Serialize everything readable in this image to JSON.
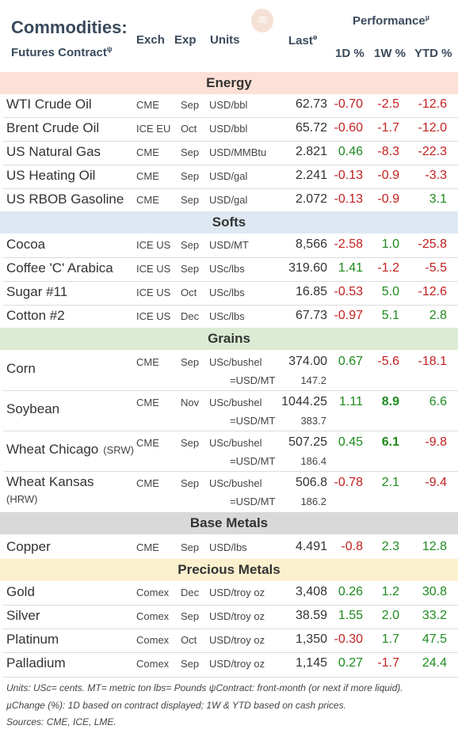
{
  "header": {
    "title": "Commodities:",
    "subtitle": "Futures Contract",
    "subtitle_sup": "ψ",
    "col_exch": "Exch",
    "col_exp": "Exp",
    "col_units": "Units",
    "col_last": "Last",
    "col_last_sup": "ɵ",
    "performance": "Performance",
    "performance_sup": "µ",
    "col_1d": "1D %",
    "col_1w": "1W %",
    "col_ytd": "YTD %"
  },
  "colors": {
    "energy": "#fde0d6",
    "softs": "#dde8f3",
    "grains": "#dcecd4",
    "base": "#d9d9d9",
    "precious": "#fcf1cf",
    "positive": "#1e8a1e",
    "negative": "#c42020"
  },
  "sections": [
    {
      "label": "Energy",
      "rows": [
        {
          "name": "WTI Crude Oil",
          "exch": "CME",
          "exp": "Sep",
          "units": "USD/bbl",
          "last": "62.73",
          "d1": "-0.70",
          "w1": "-2.5",
          "ytd": "-12.6"
        },
        {
          "name": "Brent Crude Oil",
          "exch": "ICE EU",
          "exp": "Oct",
          "units": "USD/bbl",
          "last": "65.72",
          "d1": "-0.60",
          "w1": "-1.7",
          "ytd": "-12.0"
        },
        {
          "name": "US Natural Gas",
          "exch": "CME",
          "exp": "Sep",
          "units": "USD/MMBtu",
          "last": "2.821",
          "d1": "0.46",
          "w1": "-8.3",
          "ytd": "-22.3"
        },
        {
          "name": "US Heating Oil",
          "exch": "CME",
          "exp": "Sep",
          "units": "USD/gal",
          "last": "2.241",
          "d1": "-0.13",
          "w1": "-0.9",
          "ytd": "-3.3"
        },
        {
          "name": "US RBOB Gasoline",
          "exch": "CME",
          "exp": "Sep",
          "units": "USD/gal",
          "last": "2.072",
          "d1": "-0.13",
          "w1": "-0.9",
          "ytd": "3.1"
        }
      ]
    },
    {
      "label": "Softs",
      "rows": [
        {
          "name": "Cocoa",
          "exch": "ICE US",
          "exp": "Sep",
          "units": "USD/MT",
          "last": "8,566",
          "d1": "-2.58",
          "w1": "1.0",
          "ytd": "-25.8"
        },
        {
          "name": "Coffee 'C' Arabica",
          "exch": "ICE US",
          "exp": "Sep",
          "units": "USc/lbs",
          "last": "319.60",
          "d1": "1.41",
          "w1": "-1.2",
          "ytd": "-5.5"
        },
        {
          "name": "Sugar #11",
          "exch": "ICE US",
          "exp": "Oct",
          "units": "USc/lbs",
          "last": "16.85",
          "d1": "-0.53",
          "w1": "5.0",
          "ytd": "-12.6"
        },
        {
          "name": "Cotton #2",
          "exch": "ICE US",
          "exp": "Dec",
          "units": "USc/lbs",
          "last": "67.73",
          "d1": "-0.97",
          "w1": "5.1",
          "ytd": "2.8"
        }
      ]
    },
    {
      "label": "Grains",
      "rows": [
        {
          "name": "Corn",
          "exch": "CME",
          "exp": "Sep",
          "units": "USc/bushel",
          "last": "374.00",
          "d1": "0.67",
          "w1": "-5.6",
          "ytd": "-18.1",
          "units2": "=USD/MT",
          "last2": "147.2"
        },
        {
          "name": "Soybean",
          "exch": "CME",
          "exp": "Nov",
          "units": "USc/bushel",
          "last": "1044.25",
          "d1": "1.11",
          "w1": "8.9",
          "ytd": "6.6",
          "units2": "=USD/MT",
          "last2": "383.7"
        },
        {
          "name": "Wheat Chicago",
          "name_suffix": "(SRW)",
          "exch": "CME",
          "exp": "Sep",
          "units": "USc/bushel",
          "last": "507.25",
          "d1": "0.45",
          "w1": "6.1",
          "ytd": "-9.8",
          "units2": "=USD/MT",
          "last2": "186.4"
        },
        {
          "name": "Wheat Kansas",
          "name_suffix": "(HRW)",
          "exch": "CME",
          "exp": "Sep",
          "units": "USc/bushel",
          "last": "506.8",
          "d1": "-0.78",
          "w1": "2.1",
          "ytd": "-9.4",
          "units2": "=USD/MT",
          "last2": "186.2"
        }
      ]
    },
    {
      "label": "Base Metals",
      "rows": [
        {
          "name": "Copper",
          "exch": "CME",
          "exp": "Sep",
          "units": "USD/lbs",
          "last": "4.491",
          "d1": "-0.8",
          "w1": "2.3",
          "ytd": "12.8"
        }
      ]
    },
    {
      "label": "Precious Metals",
      "rows": [
        {
          "name": "Gold",
          "exch": "Comex",
          "exp": "Dec",
          "units": "USD/troy oz",
          "last": "3,408",
          "d1": "0.26",
          "w1": "1.2",
          "ytd": "30.8"
        },
        {
          "name": "Silver",
          "exch": "Comex",
          "exp": "Sep",
          "units": "USD/troy oz",
          "last": "38.59",
          "d1": "1.55",
          "w1": "2.0",
          "ytd": "33.2"
        },
        {
          "name": "Platinum",
          "exch": "Comex",
          "exp": "Oct",
          "units": "USD/troy oz",
          "last": "1,350",
          "d1": "-0.30",
          "w1": "1.7",
          "ytd": "47.5"
        },
        {
          "name": "Palladium",
          "exch": "Comex",
          "exp": "Sep",
          "units": "USD/troy oz",
          "last": "1,145",
          "d1": "0.27",
          "w1": "-1.7",
          "ytd": "24.4"
        }
      ]
    }
  ],
  "footnotes": {
    "line1": "Units: USc= cents.   MT= metric ton    lbs= Pounds   ψContract: front-month (or next if more liquid).",
    "line2": "µChange (%): 1D based on contract displayed; 1W & YTD based on cash prices.",
    "line3": "Sources: CME, ICE, LME."
  }
}
